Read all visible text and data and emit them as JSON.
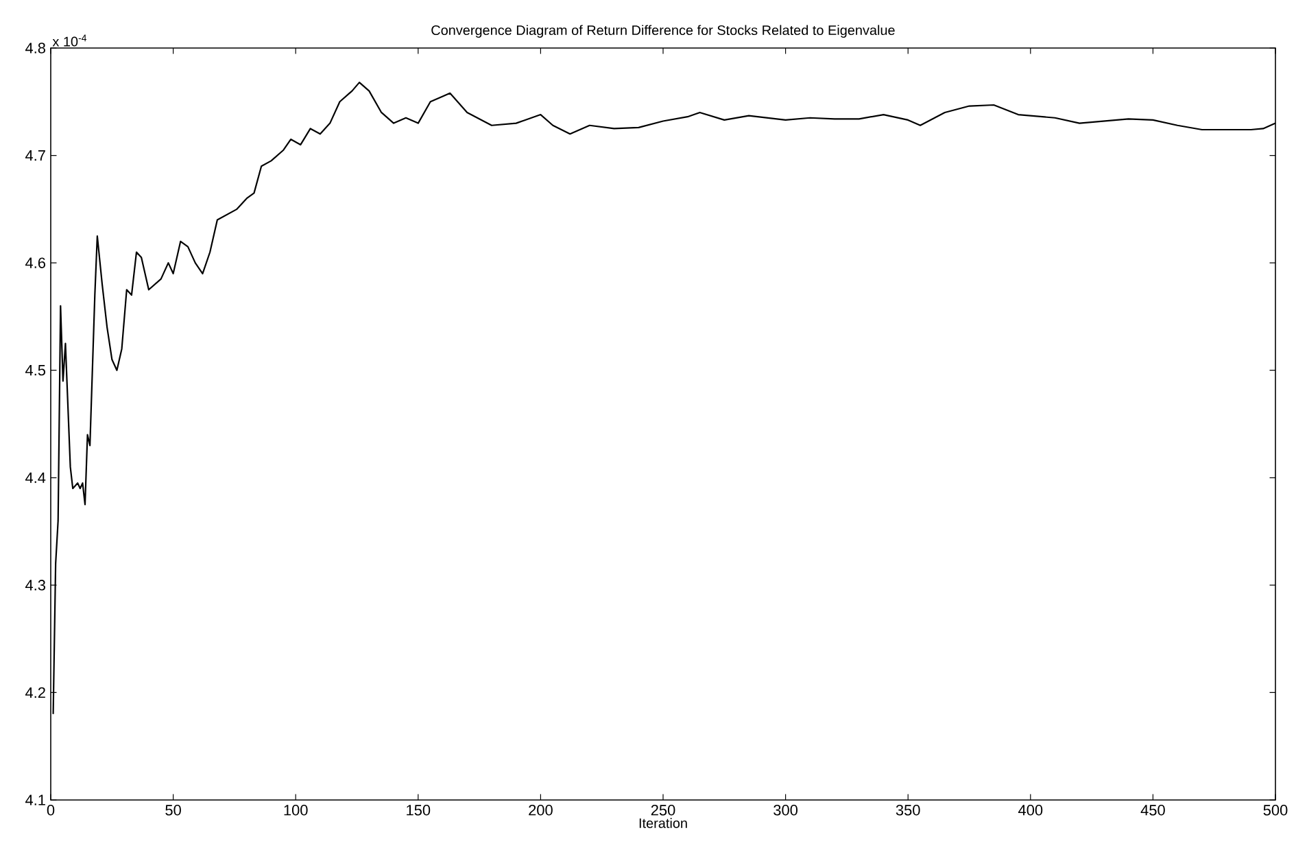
{
  "chart_data": {
    "type": "line",
    "title": "Convergence Diagram of Return Difference for Stocks Related to Eigenvalue",
    "xlabel": "Iteration",
    "annotations": [
      "x 10$^{-4}$"
    ],
    "xlim": [
      0,
      500
    ],
    "xticks": [
      0,
      50,
      100,
      150,
      200,
      250,
      300,
      350,
      400,
      450,
      500
    ],
    "ylim": [
      4.1,
      4.8
    ],
    "yticks": [
      4.1,
      4.2,
      4.3,
      4.4,
      4.5,
      4.6,
      4.7,
      4.8
    ],
    "grid": false,
    "marker": "none",
    "line_style": "solid",
    "series": [
      {
        "color": "#000000",
        "x": [
          1,
          2,
          3,
          4,
          5,
          6,
          8,
          9,
          11,
          12,
          13,
          14,
          15,
          16,
          18,
          19,
          21,
          23,
          25,
          27,
          29,
          31,
          33,
          35,
          37,
          40,
          45,
          48,
          50,
          53,
          56,
          59,
          62,
          65,
          68,
          72,
          76,
          80,
          83,
          86,
          90,
          95,
          98,
          102,
          106,
          110,
          114,
          118,
          123,
          126,
          130,
          135,
          140,
          145,
          150,
          155,
          160,
          163,
          170,
          180,
          190,
          200,
          205,
          212,
          220,
          230,
          240,
          250,
          260,
          265,
          275,
          285,
          300,
          310,
          320,
          330,
          340,
          350,
          355,
          365,
          375,
          385,
          395,
          410,
          420,
          430,
          440,
          450,
          460,
          470,
          480,
          490,
          495,
          500
        ],
        "values": [
          4.18,
          4.32,
          4.36,
          4.56,
          4.49,
          4.525,
          4.41,
          4.39,
          4.395,
          4.39,
          4.395,
          4.375,
          4.44,
          4.43,
          4.57,
          4.625,
          4.58,
          4.54,
          4.51,
          4.5,
          4.52,
          4.575,
          4.57,
          4.61,
          4.605,
          4.575,
          4.585,
          4.6,
          4.59,
          4.62,
          4.615,
          4.6,
          4.59,
          4.61,
          4.64,
          4.645,
          4.65,
          4.66,
          4.665,
          4.69,
          4.695,
          4.705,
          4.715,
          4.71,
          4.725,
          4.72,
          4.73,
          4.75,
          4.76,
          4.768,
          4.76,
          4.74,
          4.73,
          4.735,
          4.73,
          4.75,
          4.755,
          4.758,
          4.74,
          4.728,
          4.73,
          4.738,
          4.728,
          4.72,
          4.728,
          4.725,
          4.726,
          4.732,
          4.736,
          4.74,
          4.733,
          4.737,
          4.733,
          4.735,
          4.734,
          4.734,
          4.738,
          4.733,
          4.728,
          4.74,
          4.746,
          4.747,
          4.738,
          4.735,
          4.73,
          4.732,
          4.734,
          4.733,
          4.728,
          4.724,
          4.724,
          4.724,
          4.725,
          4.73
        ]
      }
    ]
  }
}
